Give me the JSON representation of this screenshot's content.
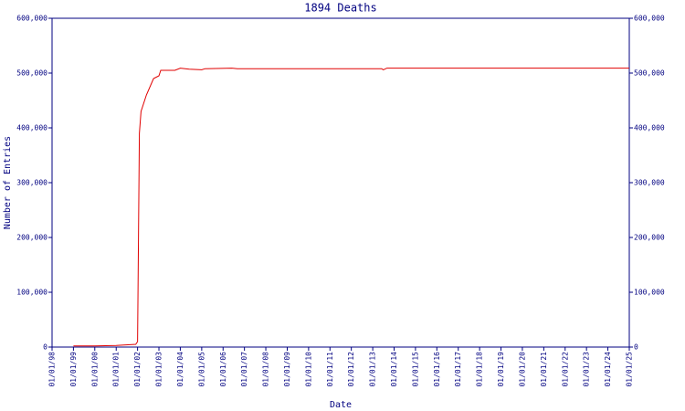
{
  "chart_data": {
    "type": "line",
    "title": "1894 Deaths",
    "xlabel": "Date",
    "ylabel": "Number of Entries",
    "x": [
      "1999-01",
      "2000-01",
      "2001-01",
      "2001-12",
      "2002-01",
      "2002-02",
      "2002-03",
      "2002-06",
      "2002-10",
      "2003-01",
      "2003-02",
      "2003-10",
      "2004-01",
      "2004-06",
      "2005-01",
      "2005-03",
      "2006-06",
      "2006-09",
      "2013-06",
      "2013-07",
      "2013-09",
      "2025-01"
    ],
    "series": [
      {
        "name": "1894 Deaths",
        "color": "#e00000",
        "values": [
          2000,
          2000,
          3000,
          5000,
          10000,
          390000,
          430000,
          460000,
          490000,
          495000,
          505000,
          505000,
          509000,
          507000,
          506000,
          508000,
          509000,
          508000,
          508000,
          506000,
          509000,
          509000
        ]
      }
    ],
    "xlim": [
      "1998-01",
      "2025-01"
    ],
    "xticks": [
      {
        "value": "1998-01",
        "label": "01/01/98"
      },
      {
        "value": "1999-01",
        "label": "01/01/99"
      },
      {
        "value": "2000-01",
        "label": "01/01/00"
      },
      {
        "value": "2001-01",
        "label": "01/01/01"
      },
      {
        "value": "2002-01",
        "label": "01/01/02"
      },
      {
        "value": "2003-01",
        "label": "01/01/03"
      },
      {
        "value": "2004-01",
        "label": "01/01/04"
      },
      {
        "value": "2005-01",
        "label": "01/01/05"
      },
      {
        "value": "2006-01",
        "label": "01/01/06"
      },
      {
        "value": "2007-01",
        "label": "01/01/07"
      },
      {
        "value": "2008-01",
        "label": "01/01/08"
      },
      {
        "value": "2009-01",
        "label": "01/01/09"
      },
      {
        "value": "2010-01",
        "label": "01/01/10"
      },
      {
        "value": "2011-01",
        "label": "01/01/11"
      },
      {
        "value": "2012-01",
        "label": "01/01/12"
      },
      {
        "value": "2013-01",
        "label": "01/01/13"
      },
      {
        "value": "2014-01",
        "label": "01/01/14"
      },
      {
        "value": "2015-01",
        "label": "01/01/15"
      },
      {
        "value": "2016-01",
        "label": "01/01/16"
      },
      {
        "value": "2017-01",
        "label": "01/01/17"
      },
      {
        "value": "2018-01",
        "label": "01/01/18"
      },
      {
        "value": "2019-01",
        "label": "01/01/19"
      },
      {
        "value": "2020-01",
        "label": "01/01/20"
      },
      {
        "value": "2021-01",
        "label": "01/01/21"
      },
      {
        "value": "2022-01",
        "label": "01/01/22"
      },
      {
        "value": "2023-01",
        "label": "01/01/23"
      },
      {
        "value": "2024-01",
        "label": "01/01/24"
      },
      {
        "value": "2025-01",
        "label": "01/01/25"
      }
    ],
    "ylim": [
      0,
      600000
    ],
    "yticks": [
      0,
      {
        "value": 100000,
        "label": "100,000"
      },
      {
        "value": 200000,
        "label": "200,000"
      },
      {
        "value": 300000,
        "label": "300,000"
      },
      {
        "value": 400000,
        "label": "400,000"
      },
      {
        "value": 500000,
        "label": "500,000"
      },
      {
        "value": 600000,
        "label": "600,000"
      }
    ],
    "y2lim": [
      0,
      600000
    ],
    "y2ticks": [
      0,
      {
        "value": 100000,
        "label": "100,000"
      },
      {
        "value": 200000,
        "label": "200,000"
      },
      {
        "value": 300000,
        "label": "300,000"
      },
      {
        "value": 400000,
        "label": "400,000"
      },
      {
        "value": 500000,
        "label": "500,000"
      },
      {
        "value": 600000,
        "label": "600,000"
      }
    ]
  }
}
